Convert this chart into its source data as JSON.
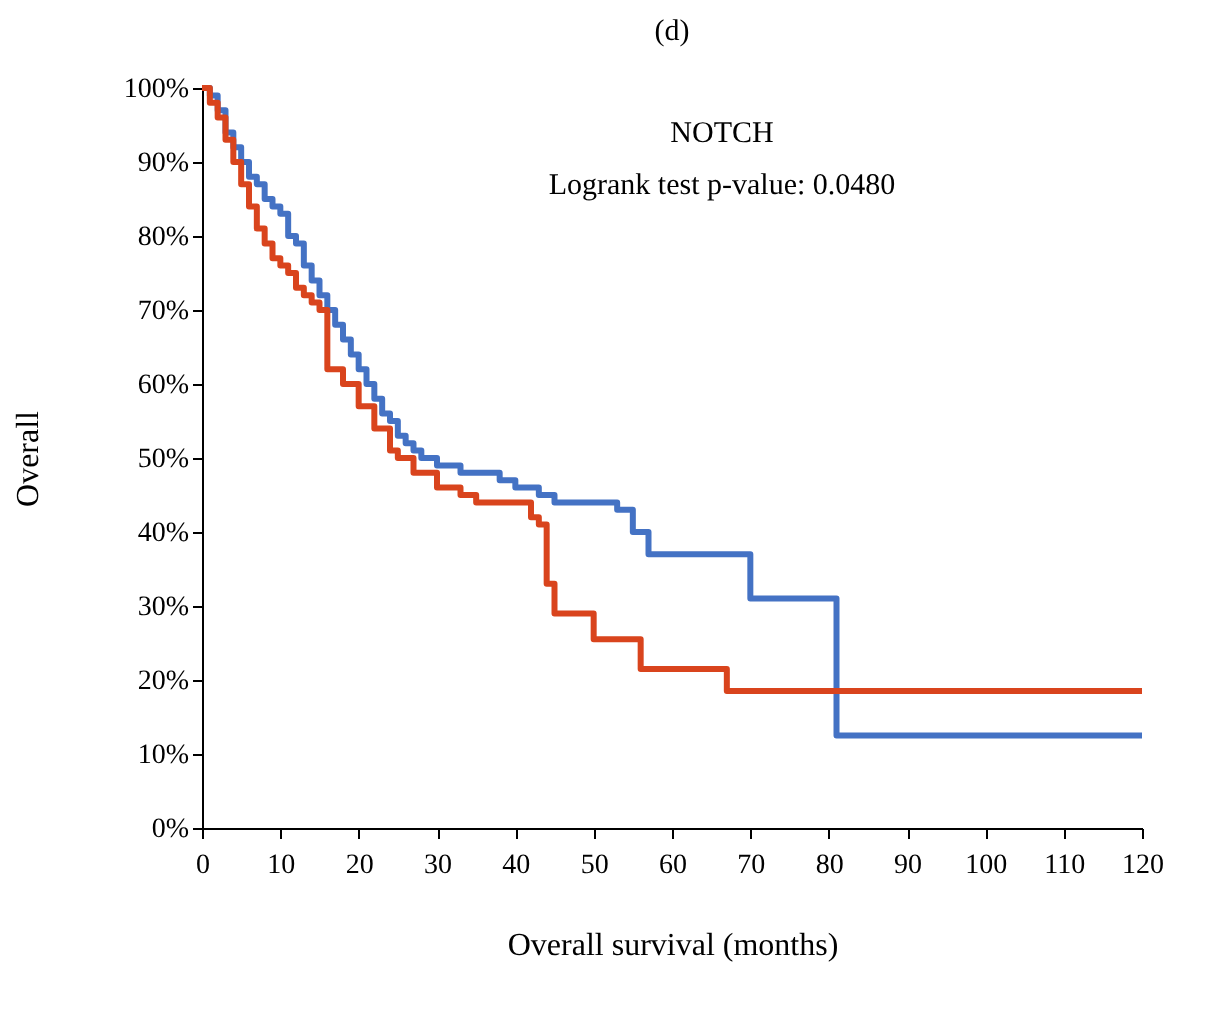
{
  "chart_data": {
    "type": "step",
    "title": "(d)",
    "xlabel": "Overall survival (months)",
    "ylabel": "Overall",
    "annotations": [
      "NOTCH",
      "Logrank test p-value: 0.0480"
    ],
    "xlim": [
      0,
      120
    ],
    "xticks": [
      0,
      10,
      20,
      30,
      40,
      50,
      60,
      70,
      80,
      90,
      100,
      110,
      120
    ],
    "ylim": [
      0,
      100
    ],
    "yticks": [
      {
        "value": 0,
        "label": "0%"
      },
      {
        "value": 10,
        "label": "10%"
      },
      {
        "value": 20,
        "label": "20%"
      },
      {
        "value": 30,
        "label": "30%"
      },
      {
        "value": 40,
        "label": "40%"
      },
      {
        "value": 50,
        "label": "50%"
      },
      {
        "value": 60,
        "label": "60%"
      },
      {
        "value": 70,
        "label": "70%"
      },
      {
        "value": 80,
        "label": "80%"
      },
      {
        "value": 90,
        "label": "90%"
      },
      {
        "value": 100,
        "label": "100%"
      }
    ],
    "grid": false,
    "marker": "none",
    "line_style": "solid",
    "series": [
      {
        "color": "#4472c4",
        "x": [
          0,
          1,
          2,
          3,
          4,
          5,
          6,
          7,
          8,
          9,
          10,
          11,
          12,
          13,
          14,
          15,
          16,
          17,
          18,
          19,
          20,
          21,
          22,
          23,
          24,
          25,
          26,
          27,
          28,
          30,
          33,
          38,
          40,
          43,
          45,
          53,
          55,
          57,
          70,
          81,
          120
        ],
        "values": [
          100,
          99,
          97,
          94,
          92,
          90,
          88,
          87,
          85,
          84,
          83,
          80,
          79,
          76,
          74,
          72,
          70,
          68,
          66,
          64,
          62,
          60,
          58,
          56,
          55,
          53,
          52,
          51,
          50,
          49,
          48,
          47,
          46,
          45,
          44,
          43,
          40,
          37,
          31,
          12.5,
          12.5
        ]
      },
      {
        "color": "#d9441d",
        "x": [
          0,
          1,
          2,
          3,
          4,
          5,
          6,
          7,
          8,
          9,
          10,
          11,
          12,
          13,
          14,
          15,
          16,
          18,
          20,
          22,
          24,
          25,
          27,
          30,
          33,
          35,
          42,
          43,
          44,
          45,
          50,
          56,
          67,
          120
        ],
        "values": [
          100,
          98,
          96,
          93,
          90,
          87,
          84,
          81,
          79,
          77,
          76,
          75,
          73,
          72,
          71,
          70,
          62,
          60,
          57,
          54,
          51,
          50,
          48,
          46,
          45,
          44,
          42,
          41,
          33,
          29,
          25.5,
          21.5,
          18.5,
          18.5
        ]
      }
    ]
  }
}
